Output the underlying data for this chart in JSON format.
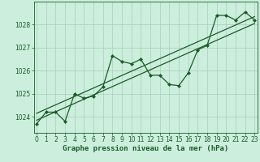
{
  "title": "Graphe pression niveau de la mer (hPa)",
  "background_color": "#cceedd",
  "grid_color": "#aaccbb",
  "line_color": "#1a5c28",
  "x_values": [
    0,
    1,
    2,
    3,
    4,
    5,
    6,
    7,
    8,
    9,
    10,
    11,
    12,
    13,
    14,
    15,
    16,
    17,
    18,
    19,
    20,
    21,
    22,
    23
  ],
  "y_values": [
    1023.7,
    1024.2,
    1024.2,
    1023.8,
    1025.0,
    1024.8,
    1024.9,
    1025.3,
    1026.65,
    1026.4,
    1026.3,
    1026.5,
    1025.8,
    1025.8,
    1025.4,
    1025.35,
    1025.9,
    1026.9,
    1027.1,
    1028.4,
    1028.4,
    1028.2,
    1028.55,
    1028.2
  ],
  "trend_line1": [
    [
      0,
      1023.85
    ],
    [
      23,
      1028.05
    ]
  ],
  "trend_line2": [
    [
      0,
      1024.15
    ],
    [
      23,
      1028.35
    ]
  ],
  "ylim": [
    1023.3,
    1029.0
  ],
  "xlim": [
    -0.3,
    23.3
  ],
  "yticks": [
    1024,
    1025,
    1026,
    1027,
    1028
  ],
  "xticks": [
    0,
    1,
    2,
    3,
    4,
    5,
    6,
    7,
    8,
    9,
    10,
    11,
    12,
    13,
    14,
    15,
    16,
    17,
    18,
    19,
    20,
    21,
    22,
    23
  ],
  "tick_fontsize": 5.5,
  "title_fontsize": 6.5,
  "line_width": 0.9,
  "marker_size": 2.5
}
